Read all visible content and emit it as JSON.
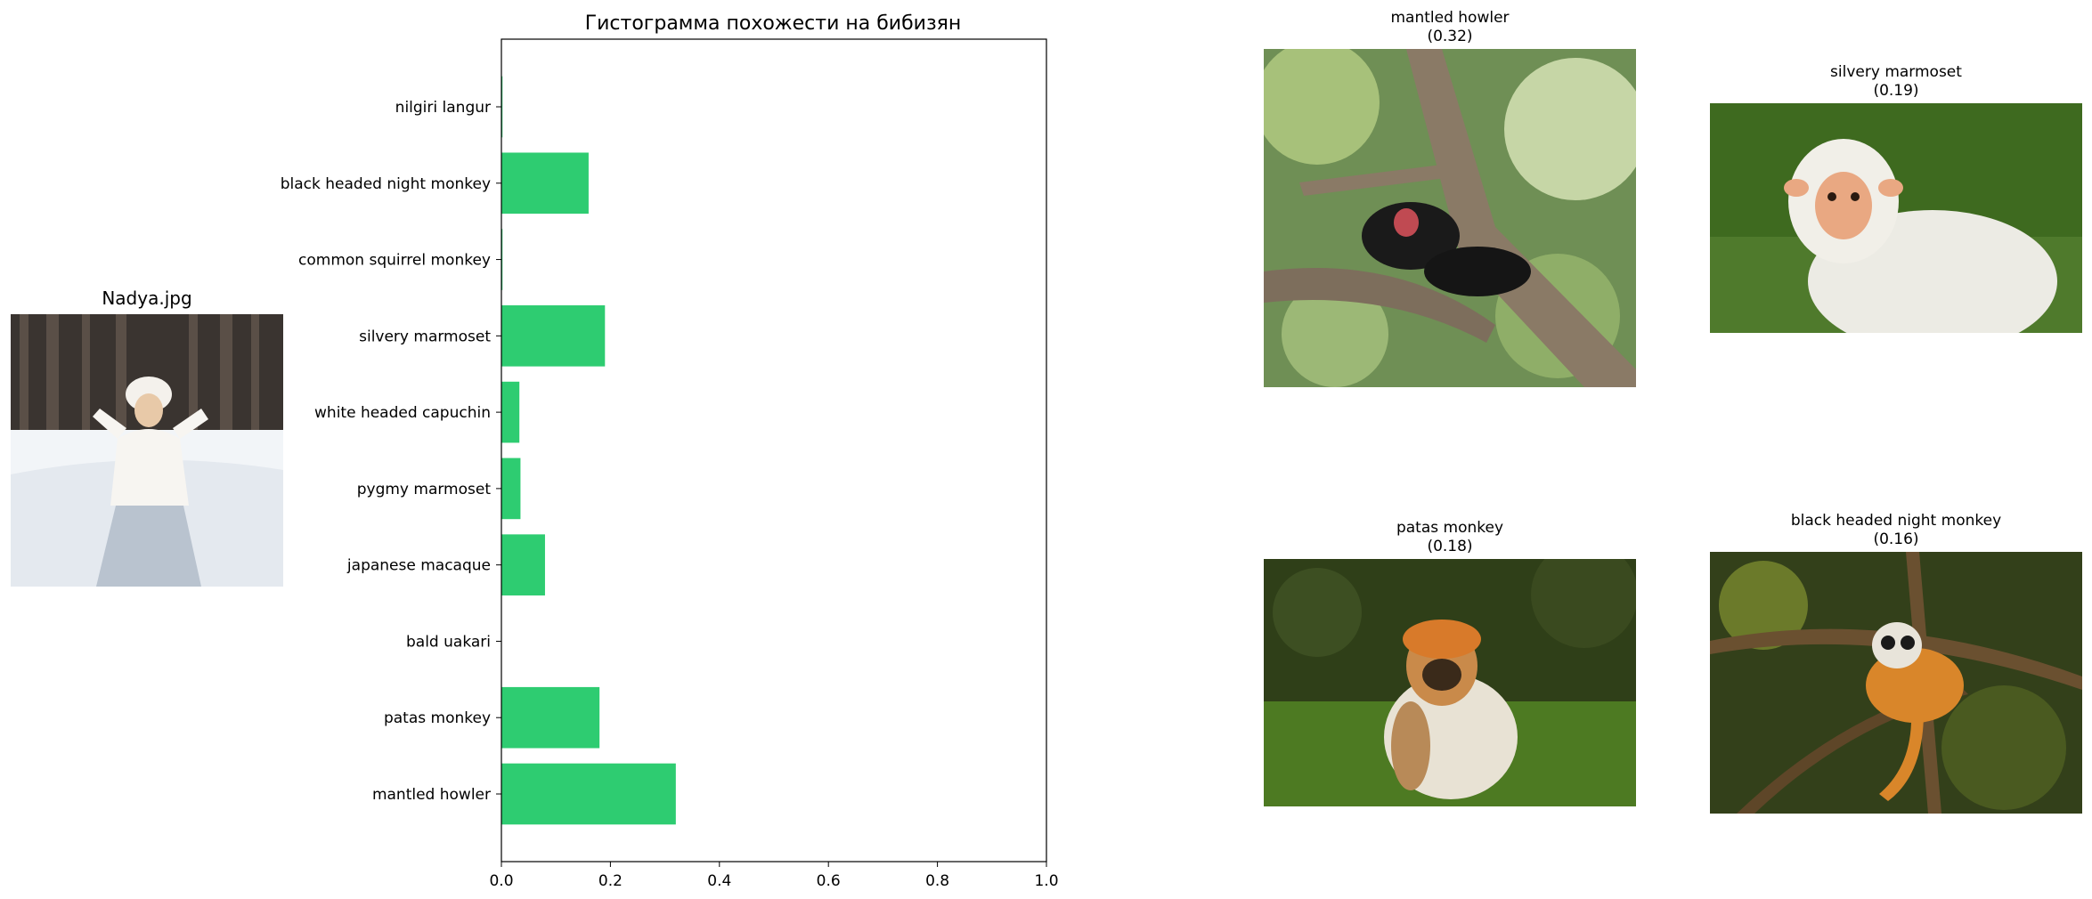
{
  "query": {
    "title": "Nadya.jpg"
  },
  "chart_data": {
    "type": "bar",
    "orientation": "horizontal",
    "title": "Гистограмма похожести на бибизян",
    "xlabel": "",
    "ylabel": "",
    "xlim": [
      0,
      1
    ],
    "xticks": [
      "0.0",
      "0.2",
      "0.4",
      "0.6",
      "0.8",
      "1.0"
    ],
    "xtick_values": [
      0,
      0.2,
      0.4,
      0.6,
      0.8,
      1.0
    ],
    "categories": [
      "mantled howler",
      "patas monkey",
      "bald uakari",
      "japanese macaque",
      "pygmy marmoset",
      "white headed capuchin",
      "silvery marmoset",
      "common squirrel monkey",
      "black headed night monkey",
      "nilgiri langur"
    ],
    "values": [
      0.32,
      0.18,
      0.0,
      0.08,
      0.035,
      0.033,
      0.19,
      0.002,
      0.16,
      0.002
    ],
    "bar_color": "#2ecc71",
    "grid": false
  },
  "matches": [
    {
      "name": "mantled howler",
      "score": "(0.32)"
    },
    {
      "name": "silvery marmoset",
      "score": "(0.19)"
    },
    {
      "name": "patas monkey",
      "score": "(0.18)"
    },
    {
      "name": "black headed night monkey",
      "score": "(0.16)"
    }
  ]
}
